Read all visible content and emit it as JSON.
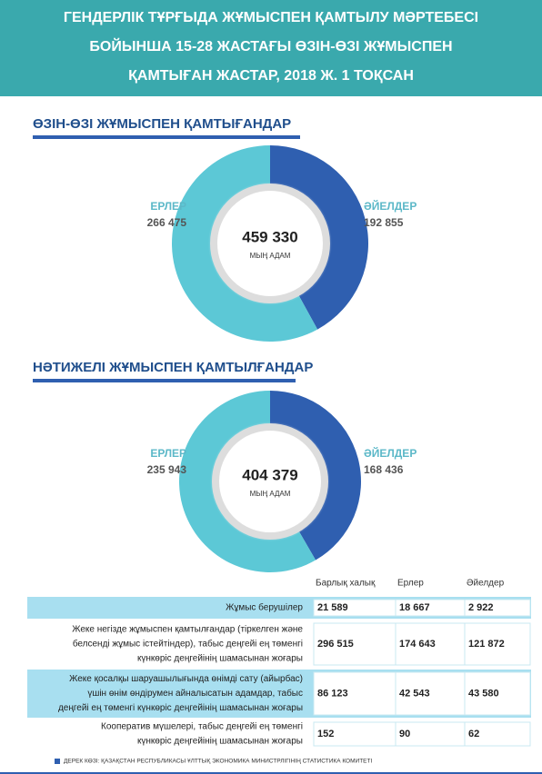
{
  "header": {
    "title_lines": [
      "ГЕНДЕРЛІК ТҰРҒЫДА ЖҰМЫСПЕН ҚАМТЫЛУ МӘРТЕБЕСІ",
      "БОЙЫНША 15-28 ЖАСТАҒЫ ӨЗІН-ӨЗІ ЖҰМЫСПЕН",
      "ҚАМТЫҒАН ЖАСТАР, 2018 Ж. 1 ТОҚСАН"
    ]
  },
  "chart_data": [
    {
      "type": "donut",
      "title": "ӨЗІН-ӨЗІ ЖҰМЫСПЕН  ҚАМТЫҒАНДАР",
      "categories": [
        "ЕРЛЕР",
        "ӘЙЕЛДЕР"
      ],
      "values": [
        266475,
        192855
      ],
      "value_labels": [
        "266 475",
        "192 855"
      ],
      "colors": [
        "#5cc8d6",
        "#2f5fb0"
      ],
      "total": {
        "value": 459330,
        "label": "459 330"
      },
      "unit": "МЫҢ АДАМ"
    },
    {
      "type": "donut",
      "title": "НӘТИЖЕЛІ ЖҰМЫСПЕН ҚАМТЫЛҒАНДАР",
      "categories": [
        "ЕРЛЕР",
        "ӘЙЕЛДЕР"
      ],
      "values": [
        235943,
        168436
      ],
      "value_labels": [
        "235 943",
        "168 436"
      ],
      "colors": [
        "#5cc8d6",
        "#2f5fb0"
      ],
      "total": {
        "value": 404379,
        "label": "404 379"
      },
      "unit": "МЫҢ АДАМ"
    }
  ],
  "table": {
    "columns": [
      "Барлық халық",
      "Ерлер",
      "Әйелдер"
    ],
    "rows": [
      {
        "label_lines": [
          "Жұмыс берушілер"
        ],
        "cells": [
          "21 589",
          "18 667",
          "2 922"
        ]
      },
      {
        "label_lines": [
          "Жеке негізде жұмыспен қамтылғандар (тіркелген және",
          "белсенді жұмыс істейтіндер), табыс деңгейі ең төменгі",
          "күнкөріс деңгейінің шамасынан жоғары"
        ],
        "cells": [
          "296 515",
          "174 643",
          "121 872"
        ]
      },
      {
        "label_lines": [
          "Жеке қосалқы шаруашылығында  өнімді сату (айырбас)",
          "үшін  өнім өндірумен айналысатын  адамдар, табыс",
          "деңгейі ең төменгі күнкөріс деңгейінің шамасынан жоғары"
        ],
        "cells": [
          "86 123",
          "42 543",
          "43 580"
        ]
      },
      {
        "label_lines": [
          "Кооператив мүшелері, табыс деңгейі ең төменгі",
          "күнкөріс деңгейінің шамасынан жоғары"
        ],
        "cells": [
          "152",
          "90",
          "62"
        ]
      }
    ]
  },
  "source": "ДЕРЕК КӨЗІ: ҚАЗАҚСТАН РЕСПУБЛИКАСЫ  ҰЛТТЫҚ ЭКОНОМИКА МИНИСТРЛІГІНІҢ СТАТИСТИКА КОМИТЕТІ"
}
